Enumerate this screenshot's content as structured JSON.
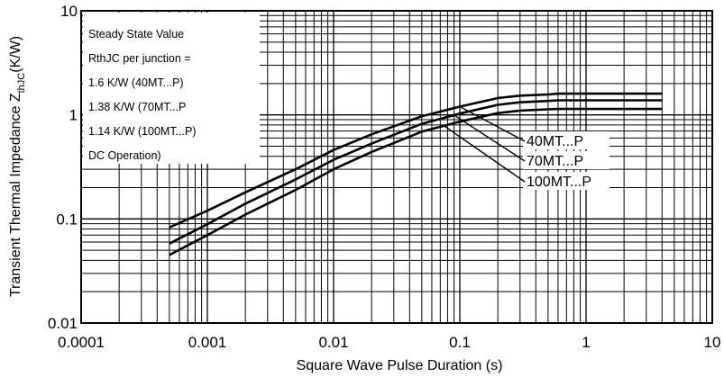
{
  "chart_data": {
    "type": "line",
    "title": "",
    "xlabel": "Square Wave Pulse Duration (s)",
    "ylabel": {
      "main": "Transient Thermal Impedance Z",
      "sub": "thJC",
      "unit": "(K/W)"
    },
    "x_scale": "log",
    "y_scale": "log",
    "xlim": [
      0.0001,
      10
    ],
    "ylim": [
      0.01,
      10
    ],
    "grid": true,
    "x_ticks": [
      "0.0001",
      "0.001",
      "0.01",
      "0.1",
      "1",
      "10"
    ],
    "y_ticks": [
      "0.01",
      "0.1",
      "1",
      "10"
    ],
    "annotation_box": [
      "Steady State Value",
      "RthJC per junction =",
      "1.6 K/W (40MT...P)",
      "1.38 K/W (70MT...P",
      "1.14 K/W (100MT...P)",
      "DC Operation)"
    ],
    "series": [
      {
        "name": "40MT...P",
        "x": [
          0.0005,
          0.001,
          0.002,
          0.005,
          0.01,
          0.02,
          0.05,
          0.1,
          0.2,
          0.3,
          0.5,
          0.6,
          1,
          2,
          4
        ],
        "y": [
          0.083,
          0.12,
          0.18,
          0.3,
          0.46,
          0.65,
          0.97,
          1.2,
          1.45,
          1.53,
          1.57,
          1.6,
          1.6,
          1.6,
          1.6
        ]
      },
      {
        "name": "70MT...P",
        "x": [
          0.0005,
          0.001,
          0.002,
          0.005,
          0.01,
          0.02,
          0.05,
          0.1,
          0.2,
          0.3,
          0.5,
          0.6,
          1,
          2,
          4
        ],
        "y": [
          0.058,
          0.089,
          0.14,
          0.24,
          0.37,
          0.53,
          0.82,
          1.03,
          1.25,
          1.32,
          1.36,
          1.38,
          1.38,
          1.38,
          1.38
        ]
      },
      {
        "name": "100MT...P",
        "x": [
          0.0005,
          0.001,
          0.002,
          0.005,
          0.01,
          0.02,
          0.05,
          0.1,
          0.2,
          0.3,
          0.5,
          0.6,
          1,
          2,
          4
        ],
        "y": [
          0.045,
          0.07,
          0.11,
          0.19,
          0.3,
          0.44,
          0.69,
          0.86,
          1.04,
          1.1,
          1.13,
          1.14,
          1.14,
          1.14,
          1.14
        ]
      }
    ]
  }
}
